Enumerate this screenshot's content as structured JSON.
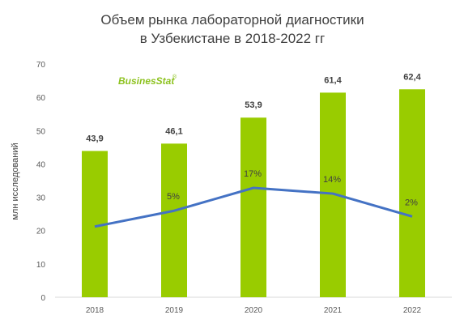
{
  "chart_data": {
    "type": "bar",
    "title": "Объем рынка лабораторной диагностики в Узбекистане в 2018-2022 гг",
    "title_lines": [
      "Объем рынка лабораторной диагностики",
      "в Узбекистане в 2018-2022 гг"
    ],
    "ylabel": "млн исследований",
    "xlabel": "",
    "ylim": [
      0,
      70
    ],
    "yticks": [
      0,
      10,
      20,
      30,
      40,
      50,
      60,
      70
    ],
    "categories": [
      "2018",
      "2019",
      "2020",
      "2021",
      "2022"
    ],
    "series": [
      {
        "type": "bar",
        "values": [
          43.9,
          46.1,
          53.9,
          61.4,
          62.4
        ],
        "labels": [
          "43,9",
          "46,1",
          "53,9",
          "61,4",
          "62,4"
        ],
        "color": "#99cc00"
      },
      {
        "type": "line",
        "values": [
          null,
          5,
          17,
          14,
          2
        ],
        "labels": [
          "",
          "5%",
          "17%",
          "14%",
          "2%"
        ],
        "color": "#4472c4"
      }
    ],
    "grid": false,
    "legend": "none"
  },
  "logo": {
    "text": "BusinesStat",
    "registered": "®"
  }
}
